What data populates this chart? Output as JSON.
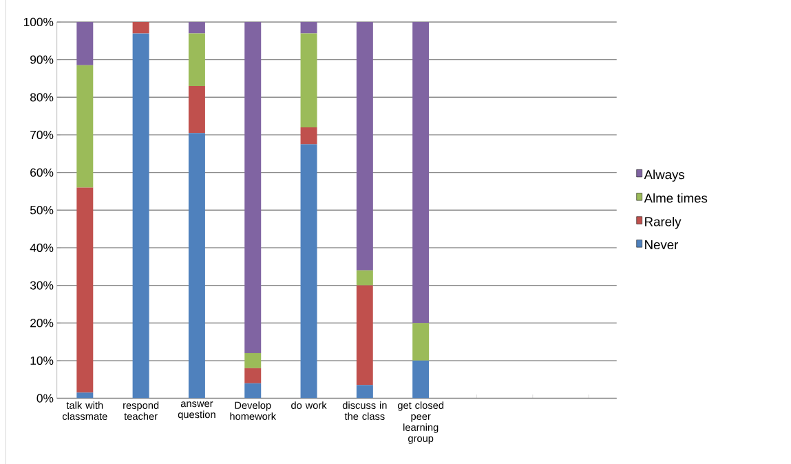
{
  "chart_data": {
    "type": "bar",
    "stacked": true,
    "categories": [
      "talk with classmate",
      "respond teacher",
      "answer question",
      "Develop homework",
      "do work",
      "discuss in the class",
      "get closed peer learning group",
      null,
      null,
      null
    ],
    "series": [
      {
        "name": "Never",
        "color": "#4f81bd",
        "values": [
          1.5,
          97,
          70.5,
          4,
          67.5,
          3.5,
          10,
          null,
          null,
          null
        ]
      },
      {
        "name": "Rarely",
        "color": "#c0504d",
        "values": [
          54.5,
          3,
          12.5,
          4,
          4.5,
          26.5,
          0,
          null,
          null,
          null
        ]
      },
      {
        "name": "Alme times",
        "color": "#9bbb59",
        "values": [
          32.5,
          0,
          14,
          4,
          25,
          4,
          10,
          null,
          null,
          null
        ]
      },
      {
        "name": "Always",
        "color": "#8064a2",
        "values": [
          11.5,
          0,
          3,
          88,
          3,
          66,
          80,
          null,
          null,
          null
        ]
      }
    ],
    "ylim": [
      0,
      100
    ],
    "yticks": [
      {
        "value": 0,
        "label": "0%"
      },
      {
        "value": 10,
        "label": "10%"
      },
      {
        "value": 20,
        "label": "20%"
      },
      {
        "value": 30,
        "label": "30%"
      },
      {
        "value": 40,
        "label": "40%"
      },
      {
        "value": 50,
        "label": "50%"
      },
      {
        "value": 60,
        "label": "60%"
      },
      {
        "value": 70,
        "label": "70%"
      },
      {
        "value": 80,
        "label": "80%"
      },
      {
        "value": 90,
        "label": "90%"
      },
      {
        "value": 100,
        "label": "100%"
      }
    ],
    "grid": "y",
    "legend": "right"
  }
}
